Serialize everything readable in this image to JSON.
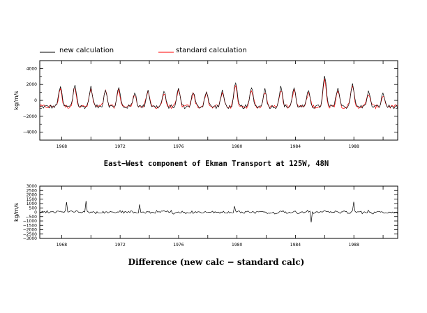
{
  "legend": {
    "new_label": "new calculation",
    "standard_label": "standard calculation",
    "new_color": "#000000",
    "standard_color": "#ff0000"
  },
  "chart_data": [
    {
      "type": "line",
      "title": "East−West component of Ekman Transport at 125W, 48N",
      "ylabel": "kg/m/s",
      "xlim": [
        1966.5,
        1991.0
      ],
      "ylim": [
        -5000,
        5000
      ],
      "x_ticks": [
        1968,
        1972,
        1976,
        1980,
        1984,
        1988
      ],
      "x_tick_labels": [
        "1968",
        "1972",
        "1976",
        "1980",
        "1984",
        "1988"
      ],
      "y_ticks": [
        -4000,
        -2000,
        0,
        2000,
        4000
      ],
      "y_tick_labels": [
        "−4000",
        "−2000",
        "0",
        "2000",
        "4000"
      ],
      "series_params": {
        "start": 1966.5,
        "end": 1991.0,
        "step": 0.0833,
        "winter_peak_years": [
          1967.9,
          1968.9,
          1970.0,
          1971.0,
          1971.9,
          1973.0,
          1973.9,
          1975.0,
          1976.0,
          1977.0,
          1977.9,
          1979.0,
          1979.9,
          1981.0,
          1981.9,
          1983.0,
          1983.9,
          1984.9,
          1986.0,
          1986.9,
          1987.9,
          1989.0,
          1990.0
        ],
        "winter_peak_values": [
          2100,
          2300,
          1900,
          1600,
          1800,
          1200,
          1500,
          1300,
          1700,
          1200,
          1400,
          1300,
          2400,
          1900,
          1600,
          1900,
          1800,
          1400,
          3400,
          1900,
          2500,
          1300,
          1000
        ],
        "summer_trough": -800
      },
      "series": [
        {
          "name": "new calculation",
          "color": "#000000"
        },
        {
          "name": "standard calculation",
          "color": "#ff0000"
        }
      ]
    },
    {
      "type": "line",
      "title": "Difference (new calc − standard calc)",
      "ylabel": "kg/m/s",
      "xlim": [
        1966.5,
        1991.0
      ],
      "ylim": [
        -3000,
        3000
      ],
      "x_ticks": [
        1968,
        1972,
        1976,
        1980,
        1984,
        1988
      ],
      "x_tick_labels": [
        "1968",
        "1972",
        "1976",
        "1980",
        "1984",
        "1988"
      ],
      "y_ticks": [
        -3000,
        -2500,
        -2000,
        -1500,
        -1000,
        -500,
        0,
        500,
        1000,
        1500,
        2000,
        2500,
        3000
      ],
      "y_tick_labels": [
        "−3000",
        "−2500",
        "−2000",
        "−1500",
        "−1000",
        "−500",
        "0",
        "500",
        "1000",
        "1500",
        "2000",
        "2500",
        "3000"
      ],
      "series": [
        {
          "name": "difference",
          "color": "#000000"
        }
      ]
    }
  ]
}
